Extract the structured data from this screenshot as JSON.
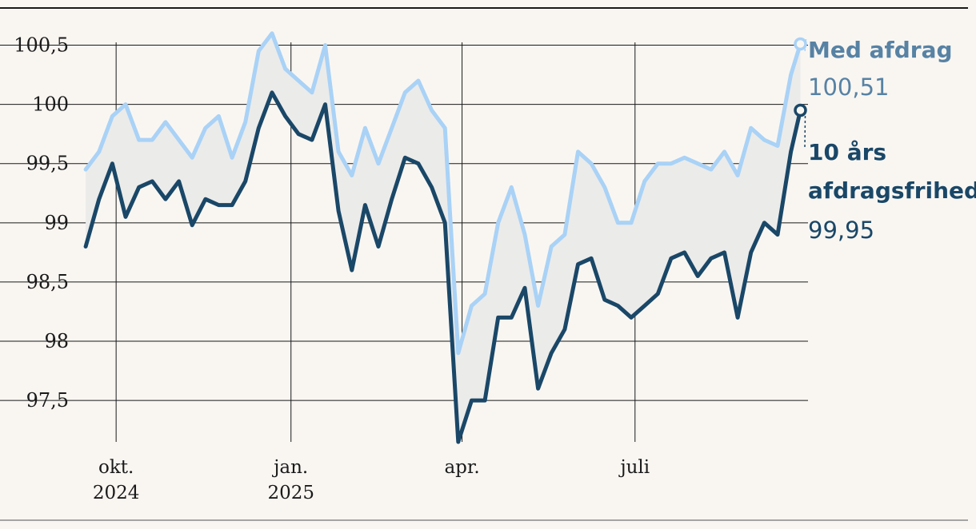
{
  "chart_data": {
    "type": "line",
    "title": "",
    "xlabel": "",
    "ylabel": "",
    "ylim": [
      97.15,
      100.78
    ],
    "xlim": [
      "2024-09-12",
      "2025-09-30"
    ],
    "y_ticks": [
      {
        "value": 97.5,
        "label": "97,5"
      },
      {
        "value": 98,
        "label": "98"
      },
      {
        "value": 98.5,
        "label": "98,5"
      },
      {
        "value": 99,
        "label": "99"
      },
      {
        "value": 99.5,
        "label": "99,5"
      },
      {
        "value": 100,
        "label": "100"
      },
      {
        "value": 100.5,
        "label": "100,5"
      }
    ],
    "x_ticks": [
      {
        "date": "2024-10-01",
        "line1": "okt.",
        "line2": "2024"
      },
      {
        "date": "2025-01-01",
        "line1": "jan.",
        "line2": "2025"
      },
      {
        "date": "2025-04-01",
        "line1": "apr.",
        "line2": ""
      },
      {
        "date": "2025-07-01",
        "line1": "juli",
        "line2": ""
      }
    ],
    "grid": true,
    "shaded_between_series": true,
    "series": [
      {
        "name": "Med afdrag",
        "color": "#a9d2f6",
        "label_color": "#5782a4",
        "last_value_label": "100,51",
        "x": [
          "2024-09-15",
          "2024-09-22",
          "2024-09-29",
          "2024-10-06",
          "2024-10-13",
          "2024-10-20",
          "2024-10-27",
          "2024-11-03",
          "2024-11-10",
          "2024-11-17",
          "2024-11-24",
          "2024-12-01",
          "2024-12-08",
          "2024-12-15",
          "2024-12-22",
          "2024-12-29",
          "2025-01-05",
          "2025-01-12",
          "2025-01-19",
          "2025-01-26",
          "2025-02-02",
          "2025-02-09",
          "2025-02-16",
          "2025-02-23",
          "2025-03-02",
          "2025-03-09",
          "2025-03-16",
          "2025-03-23",
          "2025-03-30",
          "2025-04-06",
          "2025-04-13",
          "2025-04-20",
          "2025-04-27",
          "2025-05-04",
          "2025-05-11",
          "2025-05-18",
          "2025-05-25",
          "2025-06-01",
          "2025-06-08",
          "2025-06-15",
          "2025-06-22",
          "2025-06-29",
          "2025-07-06",
          "2025-07-13",
          "2025-07-20",
          "2025-07-27",
          "2025-08-03",
          "2025-08-10",
          "2025-08-17",
          "2025-08-24",
          "2025-08-31",
          "2025-09-07",
          "2025-09-14",
          "2025-09-21",
          "2025-09-26"
        ],
        "values": [
          99.45,
          99.6,
          99.9,
          100.0,
          99.7,
          99.7,
          99.85,
          99.7,
          99.55,
          99.8,
          99.9,
          99.55,
          99.85,
          100.45,
          100.6,
          100.3,
          100.2,
          100.1,
          100.5,
          99.6,
          99.4,
          99.8,
          99.5,
          99.8,
          100.1,
          100.2,
          99.95,
          99.8,
          97.9,
          98.3,
          98.4,
          99.0,
          99.3,
          98.9,
          98.3,
          98.8,
          98.9,
          99.6,
          99.5,
          99.3,
          99.0,
          99.0,
          99.35,
          99.5,
          99.5,
          99.55,
          99.5,
          99.45,
          99.6,
          99.4,
          99.8,
          99.7,
          99.65,
          100.25,
          100.51
        ]
      },
      {
        "name": "10 års afdragsfrihed",
        "color": "#1a4767",
        "label_color": "#1a4767",
        "last_value_label": "99,95",
        "x": [
          "2024-09-15",
          "2024-09-22",
          "2024-09-29",
          "2024-10-06",
          "2024-10-13",
          "2024-10-20",
          "2024-10-27",
          "2024-11-03",
          "2024-11-10",
          "2024-11-17",
          "2024-11-24",
          "2024-12-01",
          "2024-12-08",
          "2024-12-15",
          "2024-12-22",
          "2024-12-29",
          "2025-01-05",
          "2025-01-12",
          "2025-01-19",
          "2025-01-26",
          "2025-02-02",
          "2025-02-09",
          "2025-02-16",
          "2025-02-23",
          "2025-03-02",
          "2025-03-09",
          "2025-03-16",
          "2025-03-23",
          "2025-03-30",
          "2025-04-06",
          "2025-04-13",
          "2025-04-20",
          "2025-04-27",
          "2025-05-04",
          "2025-05-11",
          "2025-05-18",
          "2025-05-25",
          "2025-06-01",
          "2025-06-08",
          "2025-06-15",
          "2025-06-22",
          "2025-06-29",
          "2025-07-06",
          "2025-07-13",
          "2025-07-20",
          "2025-07-27",
          "2025-08-03",
          "2025-08-10",
          "2025-08-17",
          "2025-08-24",
          "2025-08-31",
          "2025-09-07",
          "2025-09-14",
          "2025-09-21",
          "2025-09-26"
        ],
        "values": [
          98.8,
          99.2,
          99.5,
          99.05,
          99.3,
          99.35,
          99.2,
          99.35,
          98.98,
          99.2,
          99.15,
          99.15,
          99.35,
          99.8,
          100.1,
          99.9,
          99.75,
          99.7,
          100.0,
          99.1,
          98.6,
          99.15,
          98.8,
          99.2,
          99.55,
          99.5,
          99.3,
          99.0,
          97.15,
          97.5,
          97.5,
          98.2,
          98.2,
          98.45,
          97.6,
          97.9,
          98.1,
          98.65,
          98.7,
          98.35,
          98.3,
          98.2,
          98.3,
          98.4,
          98.7,
          98.75,
          98.55,
          98.7,
          98.75,
          98.2,
          98.75,
          99.0,
          98.9,
          99.6,
          99.95
        ]
      }
    ]
  }
}
